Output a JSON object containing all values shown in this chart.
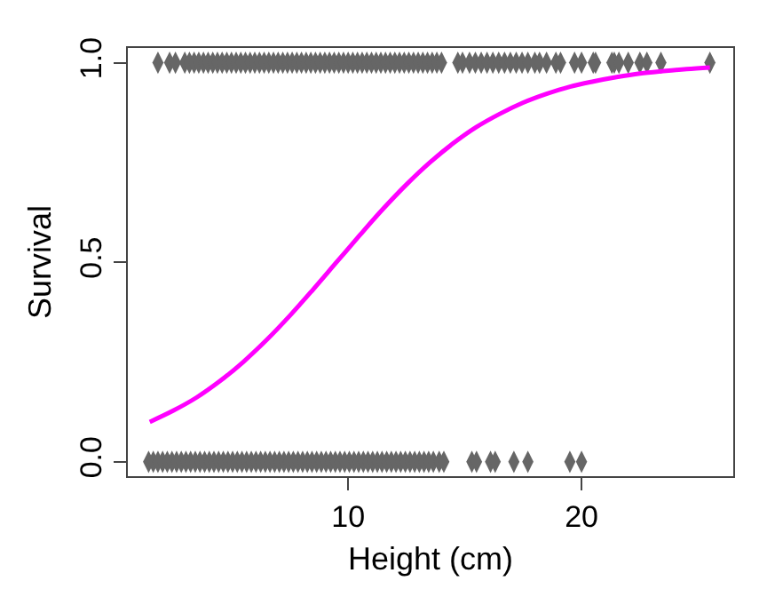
{
  "chart_data": {
    "type": "scatter",
    "xlabel": "Height (cm)",
    "ylabel": "Survival",
    "xlim": [
      0.56,
      26.5
    ],
    "ylim": [
      -0.036,
      1.037
    ],
    "xticks": [
      10,
      20
    ],
    "yticks": [
      {
        "value": 0,
        "label": "0.0"
      },
      {
        "value": 0.5,
        "label": "0.5"
      },
      {
        "value": 1,
        "label": "1.0"
      }
    ],
    "grid": false,
    "series": [
      {
        "type": "scatter",
        "color": "#666666",
        "x": [
          1.85,
          2.35,
          2.6,
          3.0,
          3.2,
          3.4,
          3.6,
          3.8,
          4.0,
          4.2,
          4.4,
          4.6,
          4.8,
          5.0,
          5.2,
          5.4,
          5.6,
          5.8,
          6.0,
          6.2,
          6.4,
          6.6,
          6.8,
          7.0,
          7.2,
          7.4,
          7.6,
          7.8,
          8.0,
          8.2,
          8.4,
          8.6,
          8.8,
          9.0,
          9.2,
          9.4,
          9.6,
          9.8,
          10.0,
          10.2,
          10.4,
          10.6,
          10.8,
          11.0,
          11.2,
          11.4,
          11.6,
          11.8,
          12.0,
          12.2,
          12.4,
          12.6,
          12.8,
          13.0,
          13.2,
          13.4,
          13.6,
          13.8,
          14.0,
          14.7,
          14.9,
          15.2,
          15.45,
          15.7,
          15.95,
          16.2,
          16.45,
          16.7,
          16.95,
          17.2,
          17.45,
          17.7,
          18.0,
          18.2,
          18.5,
          18.9,
          19.1,
          19.7,
          20.0,
          20.5,
          20.6,
          21.3,
          21.4,
          21.6,
          22.0,
          22.5,
          22.8,
          23.4,
          25.5
        ],
        "values": [
          1,
          1,
          1,
          1,
          1,
          1,
          1,
          1,
          1,
          1,
          1,
          1,
          1,
          1,
          1,
          1,
          1,
          1,
          1,
          1,
          1,
          1,
          1,
          1,
          1,
          1,
          1,
          1,
          1,
          1,
          1,
          1,
          1,
          1,
          1,
          1,
          1,
          1,
          1,
          1,
          1,
          1,
          1,
          1,
          1,
          1,
          1,
          1,
          1,
          1,
          1,
          1,
          1,
          1,
          1,
          1,
          1,
          1,
          1,
          1,
          1,
          1,
          1,
          1,
          1,
          1,
          1,
          1,
          1,
          1,
          1,
          1,
          1,
          1,
          1,
          1,
          1,
          1,
          1,
          1,
          1,
          1,
          1,
          1,
          1,
          1,
          1,
          1,
          1
        ]
      },
      {
        "type": "scatter",
        "color": "#666666",
        "x": [
          1.45,
          1.65,
          1.85,
          2.05,
          2.25,
          2.45,
          2.65,
          2.85,
          3.05,
          3.25,
          3.45,
          3.65,
          3.85,
          4.05,
          4.25,
          4.45,
          4.65,
          4.85,
          5.05,
          5.25,
          5.45,
          5.65,
          5.85,
          6.05,
          6.25,
          6.45,
          6.65,
          6.85,
          7.05,
          7.25,
          7.45,
          7.65,
          7.85,
          8.05,
          8.25,
          8.45,
          8.65,
          8.85,
          9.05,
          9.25,
          9.45,
          9.65,
          9.85,
          10.05,
          10.25,
          10.45,
          10.65,
          10.85,
          11.05,
          11.25,
          11.45,
          11.65,
          11.85,
          12.05,
          12.25,
          12.45,
          12.65,
          12.85,
          13.05,
          13.25,
          13.45,
          13.65,
          13.9,
          14.1,
          15.3,
          15.5,
          16.1,
          16.3,
          17.1,
          17.7,
          19.5,
          20.0
        ],
        "values": [
          0,
          0,
          0,
          0,
          0,
          0,
          0,
          0,
          0,
          0,
          0,
          0,
          0,
          0,
          0,
          0,
          0,
          0,
          0,
          0,
          0,
          0,
          0,
          0,
          0,
          0,
          0,
          0,
          0,
          0,
          0,
          0,
          0,
          0,
          0,
          0,
          0,
          0,
          0,
          0,
          0,
          0,
          0,
          0,
          0,
          0,
          0,
          0,
          0,
          0,
          0,
          0,
          0,
          0,
          0,
          0,
          0,
          0,
          0,
          0,
          0,
          0,
          0,
          0,
          0,
          0,
          0,
          0,
          0,
          0,
          0,
          0
        ]
      },
      {
        "type": "line",
        "color": "#ff00ff",
        "x": [
          1.5,
          2.5,
          3.5,
          4.5,
          5.5,
          6.5,
          7.5,
          8.5,
          9.5,
          10.5,
          11.5,
          12.5,
          13.5,
          14.5,
          15.5,
          16.5,
          17.5,
          18.5,
          19.5,
          20.5,
          21.5,
          22.5,
          23.5,
          24.5,
          25.5
        ],
        "values": [
          0.1,
          0.128,
          0.161,
          0.202,
          0.25,
          0.305,
          0.366,
          0.432,
          0.5,
          0.568,
          0.634,
          0.695,
          0.75,
          0.798,
          0.839,
          0.872,
          0.9,
          0.922,
          0.94,
          0.953,
          0.964,
          0.973,
          0.979,
          0.984,
          0.988
        ]
      }
    ]
  }
}
